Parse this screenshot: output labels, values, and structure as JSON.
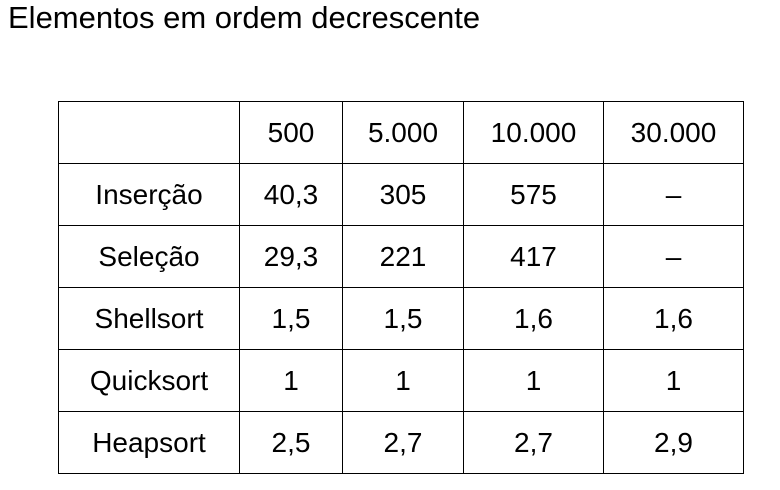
{
  "title": "Elementos em ordem decrescente",
  "table": {
    "corner": "",
    "columns": [
      "500",
      "5.000",
      "10.000",
      "30.000"
    ],
    "rows": [
      {
        "name": "Inserção",
        "values": [
          "40,3",
          "305",
          "575",
          "–"
        ]
      },
      {
        "name": "Seleção",
        "values": [
          "29,3",
          "221",
          "417",
          "–"
        ]
      },
      {
        "name": "Shellsort",
        "values": [
          "1,5",
          "1,5",
          "1,6",
          "1,6"
        ]
      },
      {
        "name": "Quicksort",
        "values": [
          "1",
          "1",
          "1",
          "1"
        ]
      },
      {
        "name": "Heapsort",
        "values": [
          "2,5",
          "2,7",
          "2,7",
          "2,9"
        ]
      }
    ]
  }
}
